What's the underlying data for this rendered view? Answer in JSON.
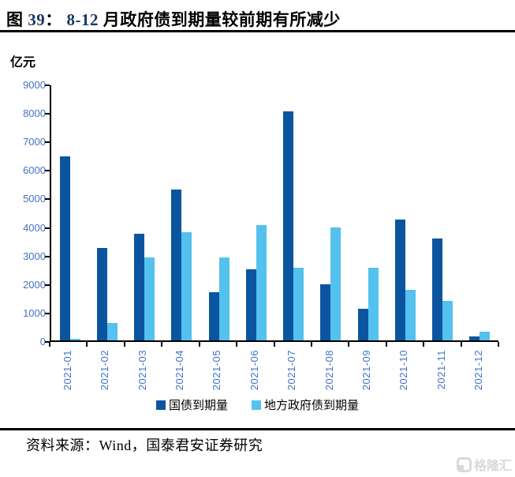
{
  "title": {
    "part1": "图 ",
    "number": "39",
    "colon": "：  ",
    "highlight": "8-12",
    "rest": " 月政府债到期量较前期有所减少"
  },
  "colors": {
    "dark_blue": "#0B55A0",
    "light_blue": "#55C1EE",
    "axis_label": "#4472C4",
    "title_highlight": "#17375E",
    "watermark": "#D9D9D9"
  },
  "chart_data": {
    "type": "bar",
    "title": "8-12 月政府债到期量较前期有所减少",
    "unit_label": "亿元",
    "categories": [
      "2021-01",
      "2021-02",
      "2021-03",
      "2021-04",
      "2021-05",
      "2021-06",
      "2021-07",
      "2021-08",
      "2021-09",
      "2021-10",
      "2021-11",
      "2021-12"
    ],
    "series": [
      {
        "name": "国债到期量",
        "color": "#0B55A0",
        "values": [
          6440,
          3250,
          3740,
          5290,
          1700,
          2490,
          8020,
          1980,
          1100,
          4230,
          3560,
          150
        ]
      },
      {
        "name": "地方政府债到期量",
        "color": "#55C1EE",
        "values": [
          60,
          600,
          2910,
          3790,
          2910,
          4040,
          2540,
          3970,
          2560,
          1770,
          1380,
          300
        ]
      }
    ],
    "ylim": [
      0,
      9000
    ],
    "ytick_step": 1000,
    "grid": false,
    "legend_position": "bottom"
  },
  "source": {
    "text": "资料来源：Wind，国泰君安证券研究"
  },
  "watermark": {
    "text": "格隆汇"
  }
}
